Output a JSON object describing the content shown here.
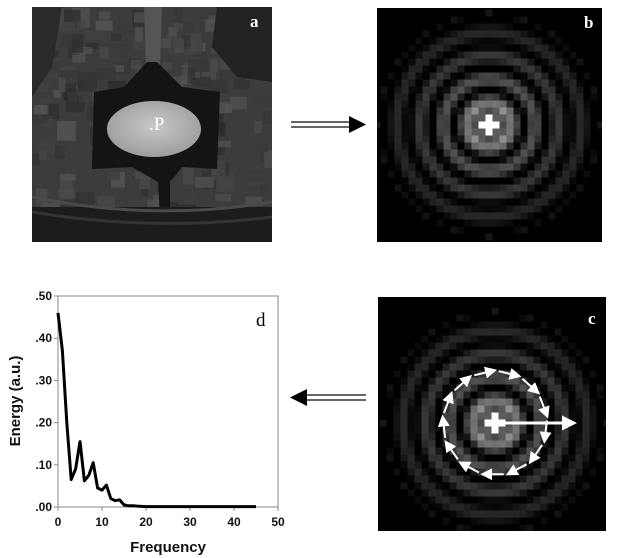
{
  "panels": {
    "a": {
      "label": "a",
      "point_label": ".P"
    },
    "b": {
      "label": "b"
    },
    "c": {
      "label": "c"
    },
    "d": {
      "label": "d"
    }
  },
  "arrows": [
    {
      "from": "a",
      "to": "b",
      "direction": "right"
    },
    {
      "from": "c",
      "to": "d",
      "direction": "left"
    }
  ],
  "chart_data": {
    "type": "line",
    "title": "",
    "xlabel": "Frequency",
    "ylabel": "Energy (a.u.)",
    "xlim": [
      0,
      50
    ],
    "ylim": [
      0,
      0.5
    ],
    "xticks": [
      "0",
      "10",
      "20",
      "30",
      "40",
      "50"
    ],
    "yticks": [
      ".00",
      ".10",
      ".20",
      ".30",
      ".40",
      ".50"
    ],
    "grid": false,
    "series": [
      {
        "color": "#000000",
        "x": [
          0,
          1,
          2,
          3,
          4,
          5,
          6,
          7,
          8,
          9,
          10,
          11,
          12,
          13,
          14,
          15,
          16,
          17,
          18,
          20,
          25,
          30,
          35,
          40,
          45
        ],
        "y": [
          0.46,
          0.37,
          0.2,
          0.065,
          0.09,
          0.155,
          0.062,
          0.075,
          0.105,
          0.045,
          0.04,
          0.052,
          0.02,
          0.015,
          0.017,
          0.005,
          0.003,
          0.003,
          0.002,
          0.001,
          0.001,
          0.001,
          0.001,
          0.001,
          0.001
        ]
      }
    ]
  }
}
